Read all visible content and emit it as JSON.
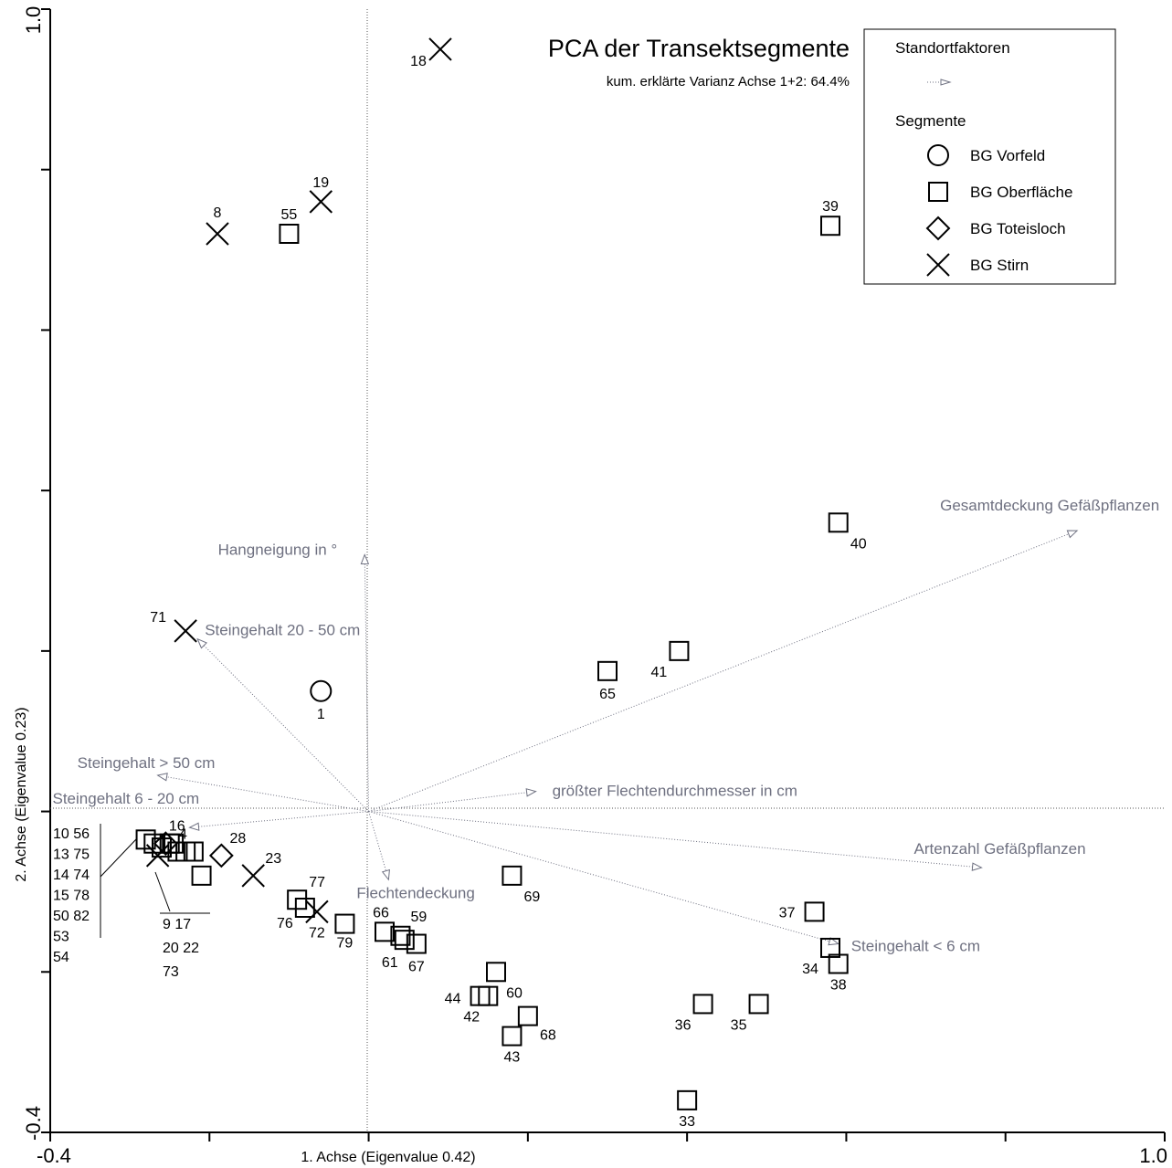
{
  "chart_data": {
    "type": "scatter",
    "title": "PCA der Transektsegmente",
    "subtitle": "kum. erklärte Varianz Achse 1+2: 64.4%",
    "xlabel": "1. Achse (Eigenvalue 0.42)",
    "ylabel": "2. Achse (Eigenvalue 0.23)",
    "xlim": [
      -0.4,
      1.0
    ],
    "ylim": [
      -0.4,
      1.0
    ],
    "x_tick_labels": [
      "-0.4",
      "1.0"
    ],
    "y_tick_labels": [
      "-0.4",
      "1.0"
    ],
    "legend": {
      "position": "top-right",
      "env_header": "Standortfaktoren",
      "seg_header": "Segmente",
      "entries": [
        {
          "marker": "circle",
          "label": "BG Vorfeld"
        },
        {
          "marker": "square",
          "label": "BG Oberfläche"
        },
        {
          "marker": "diamond",
          "label": "BG Toteisloch"
        },
        {
          "marker": "cross",
          "label": "BG Stirn"
        }
      ]
    },
    "series": [
      {
        "name": "BG Vorfeld",
        "marker": "circle",
        "points": [
          {
            "label": "1",
            "x": -0.06,
            "y": 0.15
          }
        ]
      },
      {
        "name": "BG Oberfläche",
        "marker": "square",
        "points": [
          {
            "label": "55",
            "x": -0.1,
            "y": 0.72
          },
          {
            "label": "39",
            "x": 0.58,
            "y": 0.73
          },
          {
            "label": "40",
            "x": 0.59,
            "y": 0.36
          },
          {
            "label": "41",
            "x": 0.39,
            "y": 0.2
          },
          {
            "label": "65",
            "x": 0.3,
            "y": 0.175
          },
          {
            "label": "69",
            "x": 0.18,
            "y": -0.08
          },
          {
            "label": "77",
            "x": -0.09,
            "y": -0.11
          },
          {
            "label": "76",
            "x": -0.08,
            "y": -0.12
          },
          {
            "label": "79",
            "x": -0.03,
            "y": -0.14
          },
          {
            "label": "66",
            "x": 0.02,
            "y": -0.15
          },
          {
            "label": "59",
            "x": 0.04,
            "y": -0.155
          },
          {
            "label": "61",
            "x": 0.045,
            "y": -0.16
          },
          {
            "label": "67",
            "x": 0.06,
            "y": -0.165
          },
          {
            "label": "60",
            "x": 0.16,
            "y": -0.2
          },
          {
            "label": "44",
            "x": 0.14,
            "y": -0.23
          },
          {
            "label": "42",
            "x": 0.15,
            "y": -0.23
          },
          {
            "label": "68",
            "x": 0.2,
            "y": -0.255
          },
          {
            "label": "43",
            "x": 0.18,
            "y": -0.28
          },
          {
            "label": "37",
            "x": 0.56,
            "y": -0.125
          },
          {
            "label": "34",
            "x": 0.58,
            "y": -0.17
          },
          {
            "label": "38",
            "x": 0.59,
            "y": -0.19
          },
          {
            "label": "36",
            "x": 0.42,
            "y": -0.24
          },
          {
            "label": "35",
            "x": 0.49,
            "y": -0.24
          },
          {
            "label": "33",
            "x": 0.4,
            "y": -0.36
          },
          {
            "label": "16",
            "x": -0.25,
            "y": -0.04
          },
          {
            "label": "4",
            "x": -0.24,
            "y": -0.05
          },
          {
            "label": "",
            "x": -0.21,
            "y": -0.08
          }
        ]
      },
      {
        "name": "BG Toteisloch",
        "marker": "diamond",
        "points": [
          {
            "label": "28",
            "x": -0.185,
            "y": -0.055
          }
        ]
      },
      {
        "name": "BG Stirn",
        "marker": "cross",
        "points": [
          {
            "label": "18",
            "x": 0.09,
            "y": 0.95
          },
          {
            "label": "19",
            "x": -0.06,
            "y": 0.76
          },
          {
            "label": "8",
            "x": -0.19,
            "y": 0.72
          },
          {
            "label": "71",
            "x": -0.23,
            "y": 0.225
          },
          {
            "label": "23",
            "x": -0.145,
            "y": -0.08
          },
          {
            "label": "72",
            "x": -0.065,
            "y": -0.125
          }
        ]
      }
    ],
    "cluster": {
      "markers": [
        {
          "marker": "square",
          "x": -0.28,
          "y": -0.035
        },
        {
          "marker": "square",
          "x": -0.27,
          "y": -0.04
        },
        {
          "marker": "square",
          "x": -0.26,
          "y": -0.045
        },
        {
          "marker": "square",
          "x": -0.245,
          "y": -0.04
        },
        {
          "marker": "square",
          "x": -0.23,
          "y": -0.05
        },
        {
          "marker": "square",
          "x": -0.22,
          "y": -0.05
        },
        {
          "marker": "diamond",
          "x": -0.255,
          "y": -0.04
        },
        {
          "marker": "cross",
          "x": -0.265,
          "y": -0.055
        }
      ],
      "left_labels": [
        "10 56",
        "13 75",
        "14 74",
        "15 78",
        "50 82",
        "53",
        "54"
      ],
      "right_labels": [
        "9 17",
        "20 22",
        "73"
      ]
    },
    "environmental_vectors": [
      {
        "label": "Gesamtdeckung Gefäßpflanzen",
        "x": 0.89,
        "y": 0.35
      },
      {
        "label": "Hangneigung in °",
        "x": -0.005,
        "y": 0.32
      },
      {
        "label": "Steingehalt 20 - 50 cm",
        "x": -0.215,
        "y": 0.215
      },
      {
        "label": "Steingehalt > 50 cm",
        "x": -0.265,
        "y": 0.045
      },
      {
        "label": "Steingehalt 6 - 20 cm",
        "x": -0.225,
        "y": -0.02
      },
      {
        "label": "größter Flechtendurchmesser in cm",
        "x": 0.21,
        "y": 0.025
      },
      {
        "label": "Artenzahl Gefäßpflanzen",
        "x": 0.77,
        "y": -0.07
      },
      {
        "label": "Flechtendeckung",
        "x": 0.025,
        "y": -0.085
      },
      {
        "label": "Steingehalt < 6 cm",
        "x": 0.59,
        "y": -0.165
      }
    ]
  }
}
